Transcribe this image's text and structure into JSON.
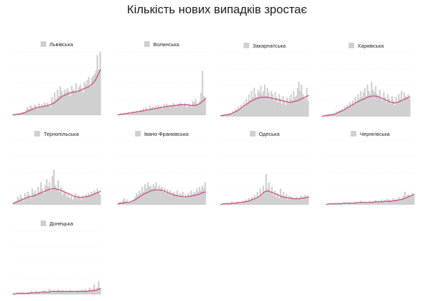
{
  "title": "Кількість нових випадків зростає",
  "colors": {
    "bars": "#d0d0d0",
    "avg": "#c8447f",
    "grid": "#e4e4e4",
    "axis": "#bdbdbd"
  },
  "chart_data": [
    {
      "type": "area",
      "region": "Львівська",
      "legend_bars": "Львівська",
      "ylim": [
        0,
        100
      ],
      "grid": true,
      "bars": [
        1,
        2,
        1,
        2,
        3,
        2,
        4,
        5,
        3,
        8,
        12,
        9,
        15,
        13,
        10,
        16,
        14,
        9,
        18,
        12,
        17,
        14,
        20,
        15,
        19,
        16,
        13,
        28,
        22,
        35,
        25,
        40,
        30,
        45,
        38,
        32,
        40,
        36,
        42,
        38,
        30,
        46,
        40,
        38,
        50,
        35,
        44,
        48,
        42,
        36,
        52,
        48,
        55,
        60,
        45,
        58,
        62,
        65,
        70,
        95,
        72,
        100
      ],
      "avg": [
        0,
        0,
        0,
        1,
        1,
        1,
        2,
        2,
        3,
        4,
        5,
        6,
        7,
        8,
        9,
        10,
        11,
        11,
        12,
        12,
        13,
        13,
        14,
        14,
        15,
        15,
        16,
        17,
        18,
        19,
        21,
        23,
        25,
        27,
        29,
        30,
        31,
        32,
        33,
        34,
        35,
        35,
        36,
        36,
        37,
        37,
        38,
        39,
        40,
        41,
        42,
        43,
        44,
        45,
        47,
        49,
        51,
        54,
        58,
        63,
        68,
        72
      ]
    },
    {
      "type": "area",
      "region": "Волинська",
      "legend_bars": "Волинська",
      "ylim": [
        0,
        100
      ],
      "grid": true,
      "bars": [
        1,
        1,
        2,
        1,
        2,
        3,
        2,
        4,
        3,
        2,
        5,
        4,
        3,
        6,
        5,
        4,
        8,
        6,
        10,
        7,
        12,
        9,
        8,
        14,
        10,
        13,
        9,
        15,
        11,
        16,
        12,
        14,
        10,
        17,
        13,
        18,
        15,
        12,
        16,
        14,
        19,
        15,
        13,
        18,
        16,
        20,
        17,
        14,
        19,
        15,
        12,
        18,
        16,
        13,
        22,
        20,
        25,
        18,
        15,
        22,
        35,
        70,
        30,
        28
      ],
      "avg": [
        0,
        0,
        1,
        1,
        1,
        2,
        2,
        2,
        3,
        3,
        3,
        4,
        4,
        4,
        5,
        5,
        5,
        6,
        6,
        7,
        7,
        8,
        8,
        8,
        9,
        9,
        10,
        10,
        10,
        11,
        11,
        12,
        12,
        12,
        13,
        13,
        13,
        14,
        14,
        14,
        15,
        15,
        15,
        15,
        16,
        16,
        16,
        16,
        16,
        16,
        16,
        15,
        15,
        15,
        15,
        15,
        15,
        16,
        17,
        18,
        20,
        22,
        24,
        26
      ]
    },
    {
      "type": "area",
      "region": "Закарпатська",
      "legend_bars": "Закарпатська",
      "ylim": [
        0,
        100
      ],
      "grid": true,
      "bars": [
        2,
        1,
        3,
        2,
        4,
        3,
        5,
        4,
        3,
        8,
        6,
        12,
        9,
        15,
        10,
        18,
        12,
        22,
        15,
        28,
        20,
        35,
        25,
        40,
        30,
        45,
        35,
        30,
        42,
        38,
        48,
        35,
        40,
        50,
        32,
        45,
        38,
        28,
        40,
        35,
        25,
        38,
        30,
        22,
        35,
        28,
        20,
        32,
        25,
        18,
        30,
        22,
        28,
        35,
        25,
        40,
        30,
        32,
        45,
        55,
        40,
        50,
        35,
        30,
        28,
        45,
        25
      ],
      "avg": [
        1,
        1,
        1,
        2,
        2,
        2,
        3,
        3,
        4,
        5,
        6,
        7,
        8,
        9,
        11,
        12,
        14,
        15,
        17,
        18,
        20,
        21,
        23,
        24,
        25,
        26,
        27,
        28,
        29,
        29,
        30,
        30,
        30,
        30,
        30,
        30,
        30,
        29,
        29,
        28,
        28,
        27,
        27,
        26,
        26,
        25,
        25,
        24,
        24,
        23,
        23,
        22,
        22,
        22,
        23,
        23,
        24,
        24,
        25,
        26,
        27,
        28,
        29,
        30,
        31,
        32,
        33
      ]
    },
    {
      "type": "area",
      "region": "Харківська",
      "legend_bars": "Харківська",
      "ylim": [
        0,
        100
      ],
      "grid": true,
      "bars": [
        1,
        2,
        1,
        3,
        2,
        4,
        3,
        2,
        5,
        4,
        8,
        6,
        10,
        7,
        12,
        9,
        15,
        11,
        18,
        14,
        22,
        16,
        25,
        20,
        30,
        22,
        35,
        28,
        40,
        30,
        38,
        45,
        32,
        50,
        40,
        35,
        55,
        42,
        38,
        48,
        35,
        30,
        42,
        28,
        25,
        38,
        30,
        22,
        35,
        28,
        20,
        32,
        25,
        18,
        30,
        22,
        35,
        28,
        40,
        25,
        38,
        32,
        30,
        35,
        28
      ],
      "avg": [
        0,
        0,
        1,
        1,
        1,
        2,
        2,
        2,
        3,
        3,
        4,
        5,
        6,
        7,
        8,
        9,
        10,
        11,
        13,
        14,
        15,
        17,
        18,
        19,
        21,
        22,
        23,
        24,
        25,
        26,
        27,
        28,
        29,
        30,
        31,
        31,
        32,
        32,
        32,
        32,
        31,
        31,
        30,
        29,
        28,
        27,
        26,
        25,
        24,
        23,
        22,
        22,
        21,
        21,
        22,
        22,
        23,
        24,
        25,
        26,
        27,
        28,
        29,
        30,
        31
      ]
    },
    {
      "type": "area",
      "region": "Тернопільська",
      "legend_bars": "Тернопільська",
      "ylim": [
        0,
        100
      ],
      "grid": true,
      "bars": [
        3,
        2,
        5,
        12,
        8,
        15,
        10,
        6,
        18,
        12,
        20,
        15,
        10,
        25,
        18,
        22,
        15,
        28,
        20,
        35,
        25,
        18,
        30,
        40,
        28,
        35,
        22,
        45,
        55,
        30,
        25,
        38,
        20,
        28,
        15,
        22,
        18,
        12,
        16,
        10,
        14,
        8,
        12,
        18,
        10,
        15,
        12,
        8,
        14,
        10,
        16,
        12,
        18,
        14,
        20,
        16,
        22,
        18,
        25,
        20,
        15
      ],
      "avg": [
        2,
        2,
        3,
        4,
        5,
        6,
        7,
        8,
        9,
        10,
        11,
        12,
        12,
        13,
        13,
        14,
        15,
        16,
        17,
        18,
        19,
        20,
        21,
        22,
        23,
        24,
        24,
        25,
        25,
        25,
        24,
        24,
        23,
        22,
        21,
        20,
        19,
        18,
        17,
        16,
        15,
        14,
        13,
        12,
        12,
        11,
        11,
        11,
        11,
        12,
        12,
        13,
        13,
        14,
        15,
        16,
        17,
        18,
        19,
        20,
        21
      ]
    },
    {
      "type": "area",
      "region": "Івано-Франківська",
      "legend_bars": "Івано-Франківська",
      "ylim": [
        0,
        100
      ],
      "grid": true,
      "bars": [
        2,
        4,
        3,
        6,
        10,
        5,
        8,
        3,
        2,
        4,
        6,
        8,
        12,
        18,
        15,
        22,
        18,
        28,
        20,
        32,
        25,
        35,
        28,
        30,
        25,
        32,
        28,
        35,
        22,
        30,
        25,
        28,
        20,
        26,
        18,
        24,
        16,
        22,
        14,
        20,
        18,
        15,
        22,
        12,
        18,
        14,
        20,
        10,
        16,
        12,
        18,
        14,
        22,
        16,
        20,
        18,
        25,
        20,
        28,
        22,
        30,
        26,
        35
      ],
      "avg": [
        1,
        1,
        2,
        2,
        2,
        3,
        3,
        3,
        3,
        4,
        5,
        6,
        7,
        8,
        10,
        11,
        13,
        14,
        16,
        17,
        18,
        19,
        20,
        21,
        22,
        22,
        23,
        23,
        23,
        23,
        23,
        22,
        22,
        21,
        20,
        19,
        18,
        17,
        16,
        15,
        15,
        14,
        14,
        13,
        13,
        13,
        12,
        12,
        12,
        12,
        13,
        13,
        13,
        14,
        14,
        15,
        15,
        16,
        17,
        18,
        19,
        19,
        20
      ]
    },
    {
      "type": "area",
      "region": "Одеська",
      "legend_bars": "Одеська",
      "ylim": [
        0,
        100
      ],
      "grid": true,
      "bars": [
        1,
        1,
        2,
        1,
        3,
        2,
        1,
        4,
        2,
        3,
        2,
        5,
        3,
        4,
        2,
        6,
        4,
        8,
        5,
        10,
        6,
        12,
        8,
        15,
        10,
        20,
        12,
        25,
        15,
        30,
        20,
        48,
        25,
        35,
        20,
        28,
        15,
        22,
        12,
        18,
        10,
        25,
        14,
        20,
        12,
        16,
        8,
        14,
        10,
        12,
        8,
        10,
        12,
        8,
        10,
        14,
        10,
        12,
        15,
        12,
        14
      ],
      "avg": [
        0,
        0,
        1,
        1,
        1,
        1,
        1,
        1,
        2,
        2,
        2,
        2,
        3,
        3,
        3,
        3,
        4,
        4,
        5,
        5,
        6,
        7,
        8,
        9,
        10,
        11,
        12,
        14,
        16,
        18,
        20,
        21,
        21,
        21,
        20,
        19,
        18,
        17,
        16,
        15,
        14,
        13,
        12,
        12,
        11,
        11,
        10,
        10,
        10,
        9,
        9,
        9,
        9,
        9,
        9,
        10,
        10,
        10,
        11,
        11,
        12
      ]
    },
    {
      "type": "area",
      "region": "Чернігівська",
      "legend_bars": "Чернігівська",
      "ylim": [
        0,
        100
      ],
      "grid": true,
      "bars": [
        1,
        0,
        1,
        2,
        1,
        0,
        2,
        1,
        3,
        1,
        2,
        1,
        3,
        2,
        1,
        4,
        2,
        3,
        1,
        5,
        2,
        4,
        3,
        6,
        2,
        5,
        3,
        4,
        2,
        6,
        3,
        5,
        4,
        7,
        3,
        6,
        4,
        8,
        5,
        7,
        4,
        9,
        6,
        8,
        5,
        10,
        7,
        9,
        6,
        12,
        8,
        10,
        14,
        20,
        12,
        16,
        15,
        12,
        18,
        14
      ],
      "avg": [
        0,
        0,
        1,
        1,
        1,
        1,
        1,
        1,
        1,
        1,
        1,
        2,
        2,
        2,
        2,
        2,
        2,
        2,
        2,
        2,
        2,
        3,
        3,
        3,
        3,
        3,
        3,
        3,
        3,
        3,
        3,
        3,
        4,
        4,
        4,
        4,
        4,
        4,
        4,
        5,
        5,
        5,
        5,
        5,
        5,
        6,
        6,
        6,
        7,
        7,
        8,
        8,
        9,
        10,
        11,
        12,
        13,
        14,
        15,
        16
      ]
    },
    {
      "type": "area",
      "region": "Донецька",
      "legend_bars": "Донецька",
      "ylim": [
        0,
        100
      ],
      "grid": true,
      "bars": [
        1,
        1,
        2,
        1,
        2,
        1,
        3,
        2,
        1,
        2,
        3,
        2,
        4,
        3,
        2,
        5,
        3,
        4,
        2,
        3,
        5,
        6,
        4,
        3,
        8,
        4,
        3,
        6,
        5,
        4,
        7,
        5,
        4,
        6,
        3,
        5,
        4,
        3,
        6,
        4,
        5,
        3,
        4,
        6,
        4,
        5,
        7,
        4,
        8,
        5,
        6,
        10,
        6,
        8,
        15,
        7,
        10,
        20,
        8
      ],
      "avg": [
        0,
        0,
        0,
        1,
        1,
        1,
        1,
        1,
        1,
        1,
        1,
        1,
        2,
        2,
        2,
        2,
        2,
        2,
        3,
        3,
        3,
        3,
        3,
        3,
        3,
        4,
        4,
        4,
        4,
        4,
        4,
        4,
        4,
        4,
        4,
        4,
        4,
        4,
        4,
        4,
        4,
        4,
        4,
        4,
        4,
        4,
        4,
        4,
        4,
        4,
        5,
        5,
        5,
        5,
        6,
        6,
        7,
        8,
        9
      ]
    }
  ]
}
